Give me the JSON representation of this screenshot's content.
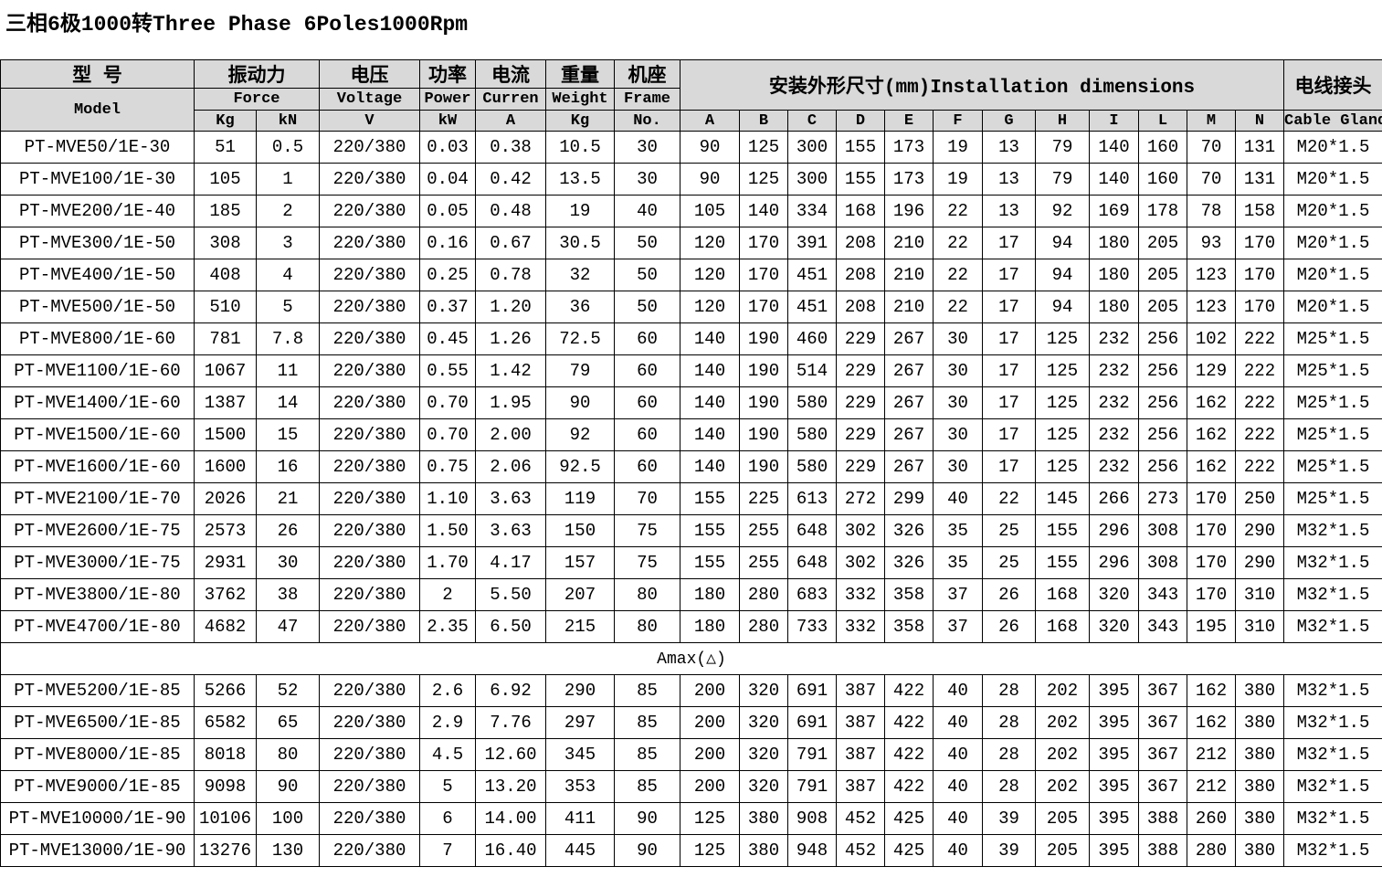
{
  "title": "三相6极1000转Three Phase 6Poles1000Rpm",
  "header": {
    "model_cn": "型 号",
    "model_en": "Model",
    "force_cn": "振动力",
    "force_en": "Force",
    "force_kg": "Kg",
    "force_kn": "kN",
    "voltage_cn": "电压",
    "voltage_en": "Voltage",
    "voltage_unit": "V",
    "power_cn": "功率",
    "power_en": "Power",
    "power_unit": "kW",
    "current_cn": "电流",
    "current_en": "Curren",
    "current_unit": "A",
    "weight_cn": "重量",
    "weight_en": "Weight",
    "weight_unit": "Kg",
    "frame_cn": "机座",
    "frame_en": "Frame",
    "frame_unit": "No.",
    "dims": "安装外形尺寸(mm)Installation dimensions",
    "dim_cols": [
      "A",
      "B",
      "C",
      "D",
      "E",
      "F",
      "G",
      "H",
      "I",
      "L",
      "M",
      "N"
    ],
    "gland_cn": "电线接头",
    "gland_en": "Cable Gland"
  },
  "rows": [
    [
      "PT-MVE50/1E-30",
      "51",
      "0.5",
      "220/380",
      "0.03",
      "0.38",
      "10.5",
      "30",
      "90",
      "125",
      "300",
      "155",
      "173",
      "19",
      "13",
      "79",
      "140",
      "160",
      "70",
      "131",
      "M20*1.5"
    ],
    [
      "PT-MVE100/1E-30",
      "105",
      "1",
      "220/380",
      "0.04",
      "0.42",
      "13.5",
      "30",
      "90",
      "125",
      "300",
      "155",
      "173",
      "19",
      "13",
      "79",
      "140",
      "160",
      "70",
      "131",
      "M20*1.5"
    ],
    [
      "PT-MVE200/1E-40",
      "185",
      "2",
      "220/380",
      "0.05",
      "0.48",
      "19",
      "40",
      "105",
      "140",
      "334",
      "168",
      "196",
      "22",
      "13",
      "92",
      "169",
      "178",
      "78",
      "158",
      "M20*1.5"
    ],
    [
      "PT-MVE300/1E-50",
      "308",
      "3",
      "220/380",
      "0.16",
      "0.67",
      "30.5",
      "50",
      "120",
      "170",
      "391",
      "208",
      "210",
      "22",
      "17",
      "94",
      "180",
      "205",
      "93",
      "170",
      "M20*1.5"
    ],
    [
      "PT-MVE400/1E-50",
      "408",
      "4",
      "220/380",
      "0.25",
      "0.78",
      "32",
      "50",
      "120",
      "170",
      "451",
      "208",
      "210",
      "22",
      "17",
      "94",
      "180",
      "205",
      "123",
      "170",
      "M20*1.5"
    ],
    [
      "PT-MVE500/1E-50",
      "510",
      "5",
      "220/380",
      "0.37",
      "1.20",
      "36",
      "50",
      "120",
      "170",
      "451",
      "208",
      "210",
      "22",
      "17",
      "94",
      "180",
      "205",
      "123",
      "170",
      "M20*1.5"
    ],
    [
      "PT-MVE800/1E-60",
      "781",
      "7.8",
      "220/380",
      "0.45",
      "1.26",
      "72.5",
      "60",
      "140",
      "190",
      "460",
      "229",
      "267",
      "30",
      "17",
      "125",
      "232",
      "256",
      "102",
      "222",
      "M25*1.5"
    ],
    [
      "PT-MVE1100/1E-60",
      "1067",
      "11",
      "220/380",
      "0.55",
      "1.42",
      "79",
      "60",
      "140",
      "190",
      "514",
      "229",
      "267",
      "30",
      "17",
      "125",
      "232",
      "256",
      "129",
      "222",
      "M25*1.5"
    ],
    [
      "PT-MVE1400/1E-60",
      "1387",
      "14",
      "220/380",
      "0.70",
      "1.95",
      "90",
      "60",
      "140",
      "190",
      "580",
      "229",
      "267",
      "30",
      "17",
      "125",
      "232",
      "256",
      "162",
      "222",
      "M25*1.5"
    ],
    [
      "PT-MVE1500/1E-60",
      "1500",
      "15",
      "220/380",
      "0.70",
      "2.00",
      "92",
      "60",
      "140",
      "190",
      "580",
      "229",
      "267",
      "30",
      "17",
      "125",
      "232",
      "256",
      "162",
      "222",
      "M25*1.5"
    ],
    [
      "PT-MVE1600/1E-60",
      "1600",
      "16",
      "220/380",
      "0.75",
      "2.06",
      "92.5",
      "60",
      "140",
      "190",
      "580",
      "229",
      "267",
      "30",
      "17",
      "125",
      "232",
      "256",
      "162",
      "222",
      "M25*1.5"
    ],
    [
      "PT-MVE2100/1E-70",
      "2026",
      "21",
      "220/380",
      "1.10",
      "3.63",
      "119",
      "70",
      "155",
      "225",
      "613",
      "272",
      "299",
      "40",
      "22",
      "145",
      "266",
      "273",
      "170",
      "250",
      "M25*1.5"
    ],
    [
      "PT-MVE2600/1E-75",
      "2573",
      "26",
      "220/380",
      "1.50",
      "3.63",
      "150",
      "75",
      "155",
      "255",
      "648",
      "302",
      "326",
      "35",
      "25",
      "155",
      "296",
      "308",
      "170",
      "290",
      "M32*1.5"
    ],
    [
      "PT-MVE3000/1E-75",
      "2931",
      "30",
      "220/380",
      "1.70",
      "4.17",
      "157",
      "75",
      "155",
      "255",
      "648",
      "302",
      "326",
      "35",
      "25",
      "155",
      "296",
      "308",
      "170",
      "290",
      "M32*1.5"
    ],
    [
      "PT-MVE3800/1E-80",
      "3762",
      "38",
      "220/380",
      "2",
      "5.50",
      "207",
      "80",
      "180",
      "280",
      "683",
      "332",
      "358",
      "37",
      "26",
      "168",
      "320",
      "343",
      "170",
      "310",
      "M32*1.5"
    ],
    [
      "PT-MVE4700/1E-80",
      "4682",
      "47",
      "220/380",
      "2.35",
      "6.50",
      "215",
      "80",
      "180",
      "280",
      "733",
      "332",
      "358",
      "37",
      "26",
      "168",
      "320",
      "343",
      "195",
      "310",
      "M32*1.5"
    ]
  ],
  "amax_label": "Amax(△)",
  "rows2": [
    [
      "PT-MVE5200/1E-85",
      "5266",
      "52",
      "220/380",
      "2.6",
      "6.92",
      "290",
      "85",
      "200",
      "320",
      "691",
      "387",
      "422",
      "40",
      "28",
      "202",
      "395",
      "367",
      "162",
      "380",
      "M32*1.5"
    ],
    [
      "PT-MVE6500/1E-85",
      "6582",
      "65",
      "220/380",
      "2.9",
      "7.76",
      "297",
      "85",
      "200",
      "320",
      "691",
      "387",
      "422",
      "40",
      "28",
      "202",
      "395",
      "367",
      "162",
      "380",
      "M32*1.5"
    ],
    [
      "PT-MVE8000/1E-85",
      "8018",
      "80",
      "220/380",
      "4.5",
      "12.60",
      "345",
      "85",
      "200",
      "320",
      "791",
      "387",
      "422",
      "40",
      "28",
      "202",
      "395",
      "367",
      "212",
      "380",
      "M32*1.5"
    ],
    [
      "PT-MVE9000/1E-85",
      "9098",
      "90",
      "220/380",
      "5",
      "13.20",
      "353",
      "85",
      "200",
      "320",
      "791",
      "387",
      "422",
      "40",
      "28",
      "202",
      "395",
      "367",
      "212",
      "380",
      "M32*1.5"
    ],
    [
      "PT-MVE10000/1E-90",
      "10106",
      "100",
      "220/380",
      "6",
      "14.00",
      "411",
      "90",
      "125",
      "380",
      "908",
      "452",
      "425",
      "40",
      "39",
      "205",
      "395",
      "388",
      "260",
      "380",
      "M32*1.5"
    ],
    [
      "PT-MVE13000/1E-90",
      "13276",
      "130",
      "220/380",
      "7",
      "16.40",
      "445",
      "90",
      "125",
      "380",
      "948",
      "452",
      "425",
      "40",
      "39",
      "205",
      "395",
      "388",
      "280",
      "380",
      "M32*1.5"
    ]
  ]
}
